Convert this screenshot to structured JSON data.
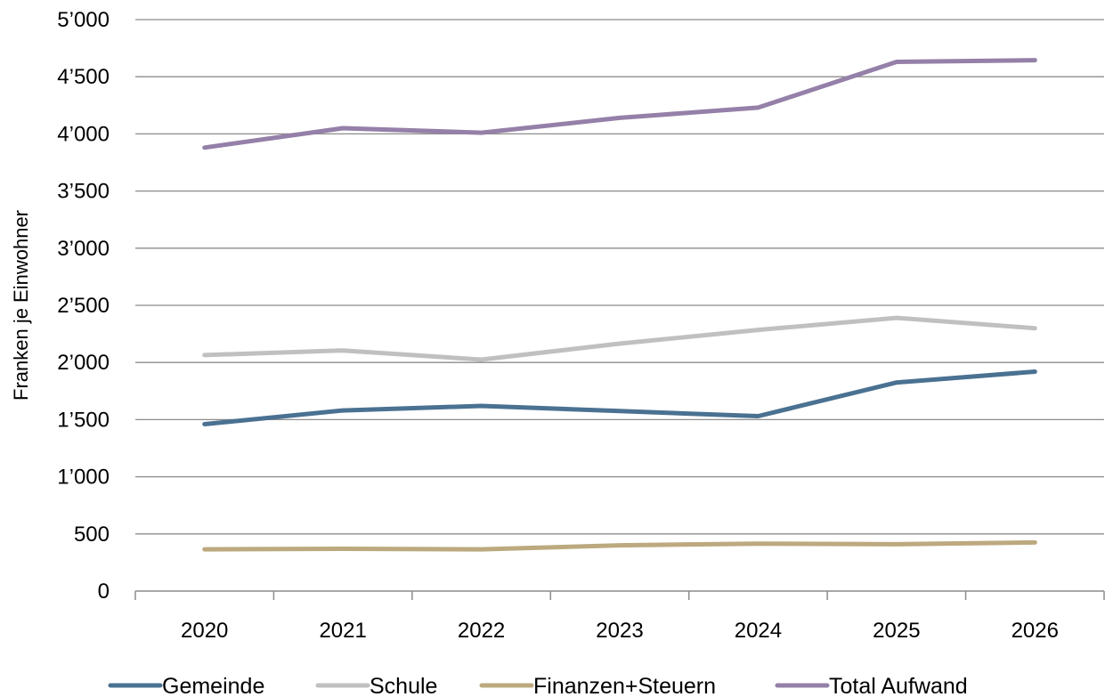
{
  "chart_data": {
    "type": "line",
    "title": "",
    "xlabel": "",
    "ylabel": "Franken je Einwohner",
    "categories": [
      "2020",
      "2021",
      "2022",
      "2023",
      "2024",
      "2025",
      "2026"
    ],
    "ylim": [
      0,
      5000
    ],
    "yticks": [
      0,
      500,
      1000,
      1500,
      2000,
      2500,
      3000,
      3500,
      4000,
      4500,
      5000
    ],
    "ytick_labels": [
      "0",
      "500",
      "1’000",
      "1’500",
      "2’000",
      "2’500",
      "3’000",
      "3’500",
      "4’000",
      "4’500",
      "5’000"
    ],
    "grid": true,
    "legend_position": "bottom",
    "series": [
      {
        "name": "Gemeinde",
        "color": "#4a7191",
        "values": [
          1460,
          1580,
          1620,
          1575,
          1530,
          1825,
          1920
        ]
      },
      {
        "name": "Schule",
        "color": "#c0c0c0",
        "values": [
          2065,
          2105,
          2025,
          2165,
          2285,
          2390,
          2300
        ]
      },
      {
        "name": "Finanzen+Steuern",
        "color": "#bda97f",
        "values": [
          365,
          370,
          365,
          400,
          415,
          410,
          425
        ]
      },
      {
        "name": "Total Aufwand",
        "color": "#9480a8",
        "values": [
          3880,
          4050,
          4010,
          4140,
          4230,
          4630,
          4645
        ]
      }
    ]
  }
}
